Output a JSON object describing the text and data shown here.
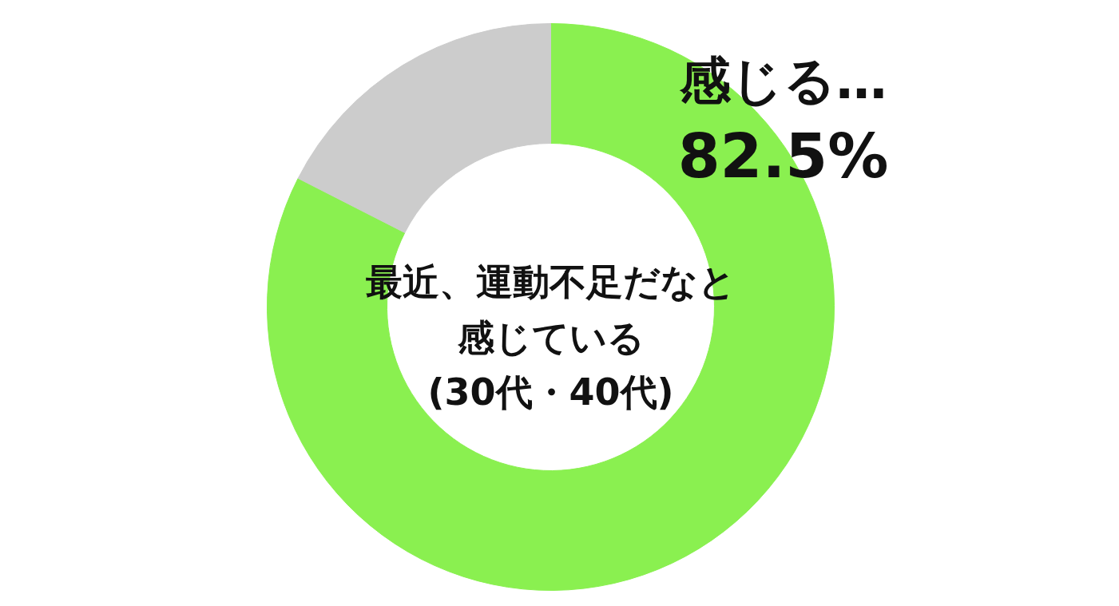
{
  "chart_data": {
    "type": "donut",
    "title": "最近、運動不足だなと感じている",
    "subtitle": "(30代・40代)",
    "categories": [
      "感じる…",
      null
    ],
    "values": [
      82.5,
      17.5
    ],
    "colors": [
      "#8af050",
      "#cccccc"
    ],
    "value_labels": [
      "82.5%",
      null
    ]
  }
}
